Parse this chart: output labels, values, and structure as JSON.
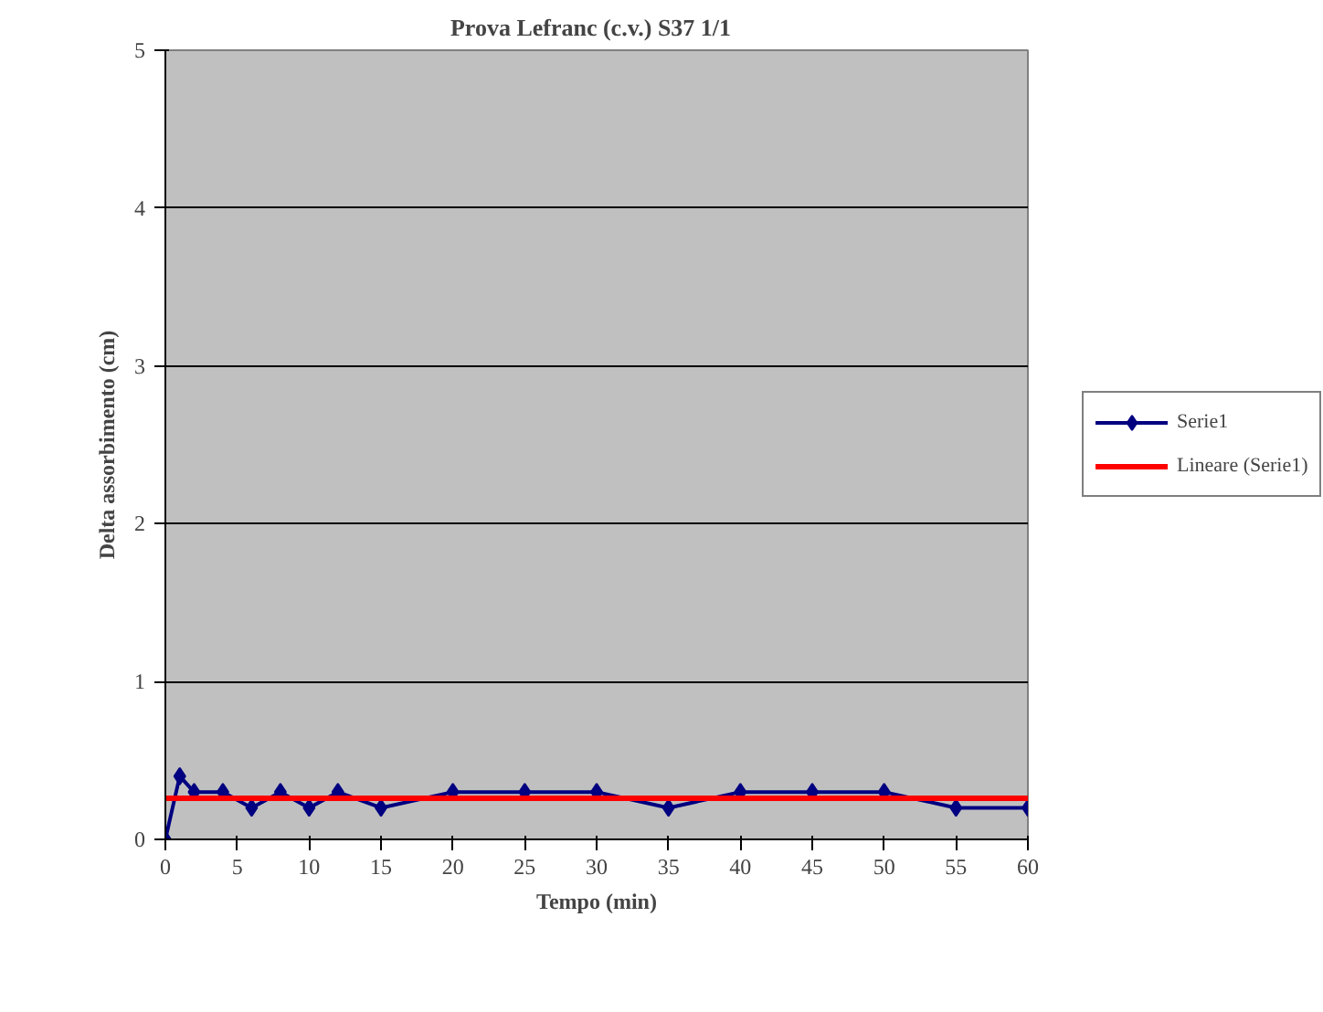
{
  "chart_data": {
    "type": "line",
    "title": "Prova Lefranc (c.v.) S37   1/1",
    "xlabel": "Tempo (min)",
    "ylabel": "Delta assorbimento (cm)",
    "series": [
      {
        "name": "Serie1",
        "color": "#000080",
        "marker": "diamond",
        "x": [
          0,
          1,
          2,
          4,
          6,
          8,
          10,
          12,
          15,
          20,
          25,
          30,
          35,
          40,
          45,
          50,
          55,
          60
        ],
        "values": [
          0,
          0.4,
          0.3,
          0.3,
          0.2,
          0.3,
          0.2,
          0.3,
          0.2,
          0.3,
          0.3,
          0.3,
          0.2,
          0.3,
          0.3,
          0.3,
          0.2,
          0.2
        ]
      },
      {
        "name": "Lineare (Serie1)",
        "color": "#ff0000",
        "marker": "none",
        "x": [
          0,
          60
        ],
        "values": [
          0.26,
          0.26
        ]
      }
    ],
    "xlim": [
      0,
      60
    ],
    "xticks": [
      0,
      5,
      10,
      15,
      20,
      25,
      30,
      35,
      40,
      45,
      50,
      55,
      60
    ],
    "ylim": [
      0,
      5
    ],
    "yticks": [
      0,
      1,
      2,
      3,
      4,
      5
    ],
    "grid": "y",
    "legend": "right"
  }
}
